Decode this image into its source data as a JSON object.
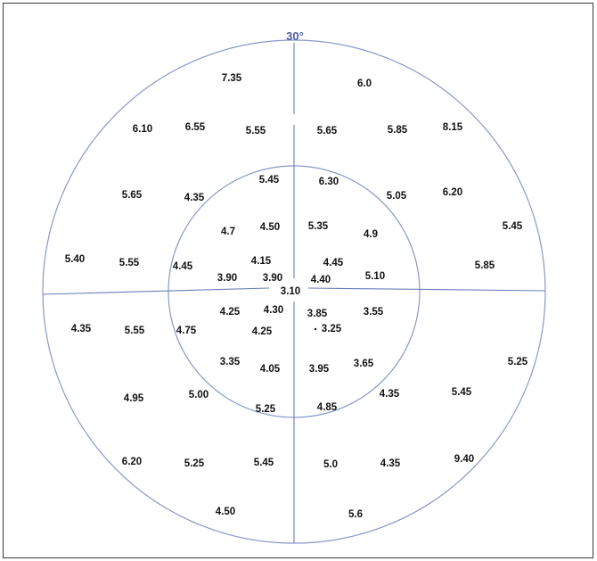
{
  "title": "30°",
  "colors": {
    "circle": "#8a98c8",
    "axis": "#6a7fb8",
    "title": "#4a5fa6",
    "text": "#111111"
  },
  "values": [
    "7.35",
    "6.0",
    "6.10",
    "6.55",
    "5.55",
    "5.65",
    "5.85",
    "8.15",
    "5.45",
    "6.30",
    "5.65",
    "4.35",
    "5.05",
    "6.20",
    "4.7",
    "4.50",
    "5.35",
    "4.9",
    "5.45",
    "5.40",
    "5.55",
    "4.45",
    "4.15",
    "4.45",
    "5.85",
    "3.90",
    "3.90",
    "4.40",
    "5.10",
    "3.10",
    "4.25",
    "4.30",
    "3.85",
    "3.55",
    "4.35",
    "5.55",
    "4.75",
    "4.25",
    "3.25",
    "3.35",
    "4.05",
    "3.95",
    "3.65",
    "5.25",
    "4.95",
    "5.00",
    "4.35",
    "5.45",
    "5.25",
    "4.85",
    "6.20",
    "5.25",
    "5.45",
    "5.0",
    "4.35",
    "9.40",
    "4.50",
    "5.6"
  ]
}
